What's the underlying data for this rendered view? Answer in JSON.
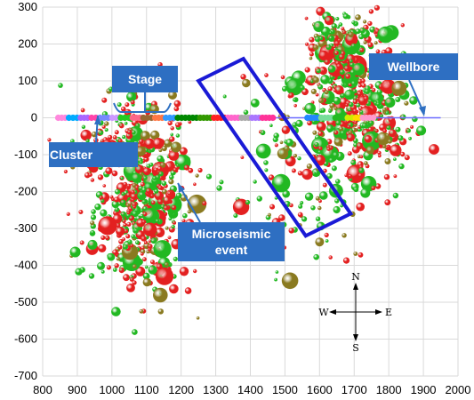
{
  "chart_data": {
    "type": "scatter",
    "title": "",
    "xlabel": "",
    "ylabel": "",
    "xlim": [
      800,
      2000
    ],
    "ylim": [
      -700,
      300
    ],
    "x_ticks": [
      800,
      900,
      1000,
      1100,
      1200,
      1300,
      1400,
      1500,
      1600,
      1700,
      1800,
      1900,
      2000
    ],
    "y_ticks": [
      -700,
      -600,
      -500,
      -400,
      -300,
      -200,
      -100,
      0,
      100,
      200,
      300
    ],
    "grid": true,
    "wellbore": {
      "label": "Wellbore",
      "x": [
        840,
        1950
      ],
      "y": [
        0,
        0
      ]
    },
    "stages": [
      {
        "x_start": 840,
        "x_end": 870,
        "color": "#ff88dd"
      },
      {
        "x_start": 870,
        "x_end": 905,
        "color": "#00aaff"
      },
      {
        "x_start": 905,
        "x_end": 935,
        "color": "#aa66ff"
      },
      {
        "x_start": 935,
        "x_end": 960,
        "color": "#ff44aa"
      },
      {
        "x_start": 960,
        "x_end": 995,
        "color": "#7788ff"
      },
      {
        "x_start": 995,
        "x_end": 1020,
        "color": "#cc99ff"
      },
      {
        "x_start": 1020,
        "x_end": 1055,
        "color": "#22cc22"
      },
      {
        "x_start": 1055,
        "x_end": 1085,
        "color": "#ff6688"
      },
      {
        "x_start": 1085,
        "x_end": 1120,
        "color": "#996633"
      },
      {
        "x_start": 1120,
        "x_end": 1150,
        "color": "#ff7744"
      },
      {
        "x_start": 1150,
        "x_end": 1185,
        "color": "#3399ff"
      },
      {
        "x_start": 1185,
        "x_end": 1250,
        "color": "#008800"
      },
      {
        "x_start": 1250,
        "x_end": 1290,
        "color": "#339900"
      },
      {
        "x_start": 1290,
        "x_end": 1330,
        "color": "#ff2222"
      },
      {
        "x_start": 1330,
        "x_end": 1370,
        "color": "#ff66cc"
      },
      {
        "x_start": 1370,
        "x_end": 1400,
        "color": "#aaaaaa"
      },
      {
        "x_start": 1400,
        "x_end": 1430,
        "color": "#aa77ff"
      },
      {
        "x_start": 1430,
        "x_end": 1470,
        "color": "#ff3399"
      },
      {
        "x_start": 1560,
        "x_end": 1600,
        "color": "#2288ff"
      },
      {
        "x_start": 1600,
        "x_end": 1640,
        "color": "#77dd99"
      },
      {
        "x_start": 1640,
        "x_end": 1675,
        "color": "#22bb22"
      },
      {
        "x_start": 1675,
        "x_end": 1700,
        "color": "#ccee00"
      },
      {
        "x_start": 1700,
        "x_end": 1720,
        "color": "#ffdd00"
      },
      {
        "x_start": 1720,
        "x_end": 1760,
        "color": "#ff99cc"
      }
    ],
    "event_clusters": [
      {
        "cx": 1080,
        "cy": -210,
        "sx": 75,
        "sy": 130,
        "n": 420
      },
      {
        "cx": 1080,
        "cy": -340,
        "sx": 70,
        "sy": 70,
        "n": 90
      },
      {
        "cx": 1040,
        "cy": -60,
        "sx": 90,
        "sy": 60,
        "n": 60
      },
      {
        "cx": 1690,
        "cy": 60,
        "sx": 75,
        "sy": 95,
        "n": 420
      },
      {
        "cx": 1650,
        "cy": 210,
        "sx": 40,
        "sy": 45,
        "n": 90
      },
      {
        "cx": 1790,
        "cy": -60,
        "sx": 50,
        "sy": 60,
        "n": 80
      },
      {
        "cx": 1530,
        "cy": -170,
        "sx": 110,
        "sy": 120,
        "n": 120
      }
    ],
    "annotations": [
      {
        "text": "Stage"
      },
      {
        "text": "Cluster"
      },
      {
        "text": "Microseismic"
      },
      {
        "text": "event"
      },
      {
        "text": "Wellbore"
      }
    ],
    "highlight_box": {
      "corners": [
        [
          1380,
          160
        ],
        [
          1250,
          100
        ],
        [
          1560,
          -320
        ],
        [
          1690,
          -260
        ]
      ],
      "color": "#1a1ad6"
    },
    "compass": {
      "n": "N",
      "s": "S",
      "e": "E",
      "w": "W"
    },
    "colors": {
      "event_red": "#e32020",
      "event_green": "#22b822",
      "event_olive": "#8a7a20",
      "annotation": "#2e6fc2",
      "wellbore": "#6c6cff"
    }
  }
}
